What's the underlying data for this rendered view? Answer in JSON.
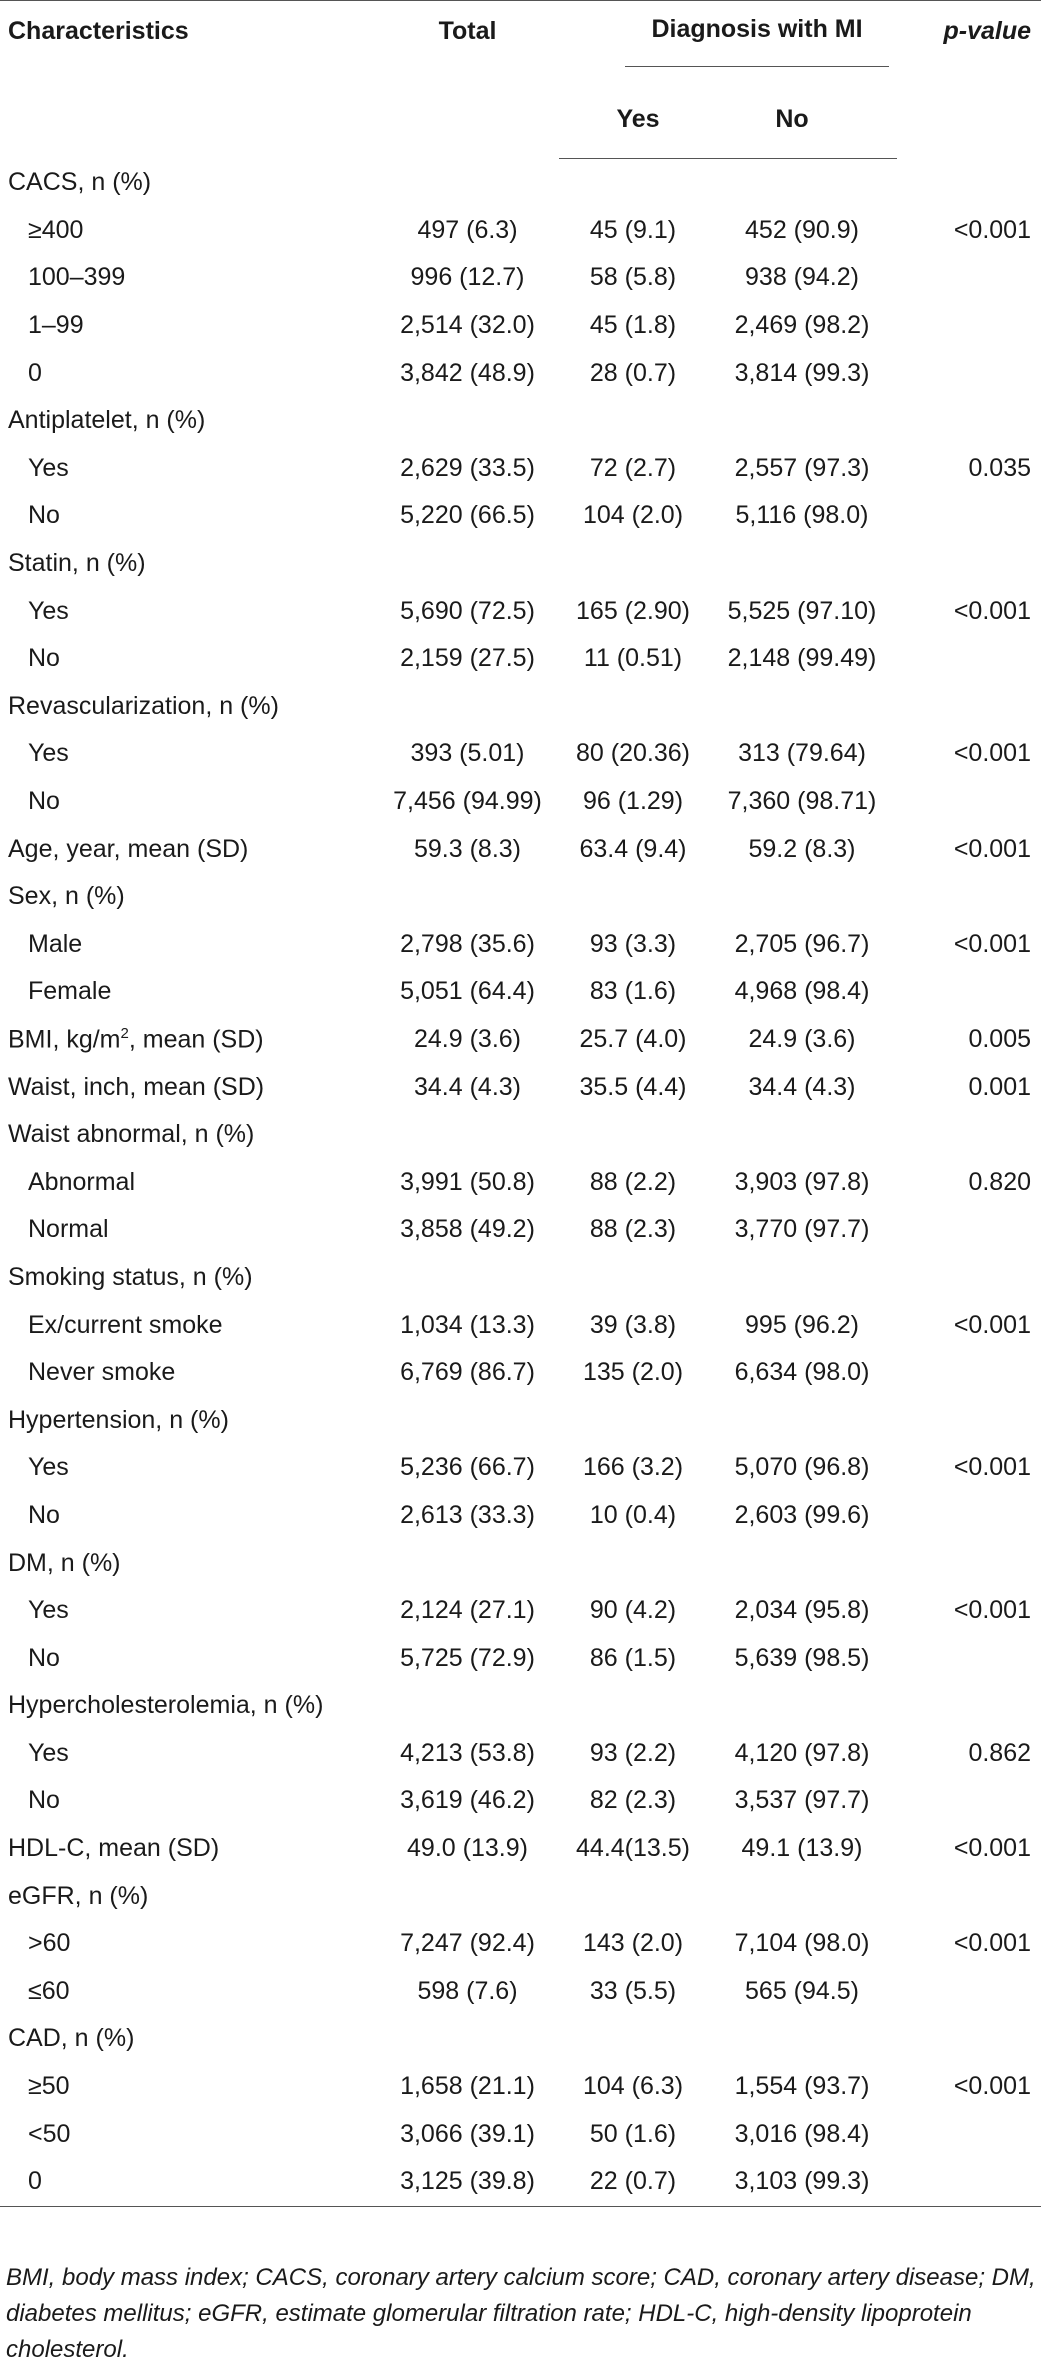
{
  "headers": {
    "characteristics": "Characteristics",
    "total": "Total",
    "diagnosis": "Diagnosis with MI",
    "yes": "Yes",
    "no": "No",
    "pvalue": "p-value"
  },
  "rows": [
    {
      "label": "CACS, n (%)",
      "group": true
    },
    {
      "label": "≥400",
      "total": "497 (6.3)",
      "yes": "45 (9.1)",
      "no": "452 (90.9)",
      "p": "<0.001"
    },
    {
      "label": "100–399",
      "total": "996 (12.7)",
      "yes": "58 (5.8)",
      "no": "938 (94.2)",
      "p": ""
    },
    {
      "label": "1–99",
      "total": "2,514 (32.0)",
      "yes": "45 (1.8)",
      "no": "2,469 (98.2)",
      "p": ""
    },
    {
      "label": "0",
      "total": "3,842 (48.9)",
      "yes": "28 (0.7)",
      "no": "3,814 (99.3)",
      "p": ""
    },
    {
      "label": "Antiplatelet, n (%)",
      "group": true
    },
    {
      "label": "Yes",
      "total": "2,629 (33.5)",
      "yes": "72 (2.7)",
      "no": "2,557 (97.3)",
      "p": "0.035"
    },
    {
      "label": "No",
      "total": "5,220 (66.5)",
      "yes": "104 (2.0)",
      "no": "5,116 (98.0)",
      "p": ""
    },
    {
      "label": "Statin, n (%)",
      "group": true
    },
    {
      "label": "Yes",
      "total": "5,690 (72.5)",
      "yes": "165 (2.90)",
      "no": "5,525 (97.10)",
      "p": "<0.001"
    },
    {
      "label": "No",
      "total": "2,159 (27.5)",
      "yes": "11 (0.51)",
      "no": "2,148 (99.49)",
      "p": ""
    },
    {
      "label": "Revascularization, n (%)",
      "group": true
    },
    {
      "label": "Yes",
      "total": "393 (5.01)",
      "yes": "80 (20.36)",
      "no": "313 (79.64)",
      "p": "<0.001"
    },
    {
      "label": "No",
      "total": "7,456 (94.99)",
      "yes": "96 (1.29)",
      "no": "7,360 (98.71)",
      "p": ""
    },
    {
      "label": "Age, year, mean (SD)",
      "top": true,
      "total": "59.3 (8.3)",
      "yes": "63.4 (9.4)",
      "no": "59.2 (8.3)",
      "p": "<0.001"
    },
    {
      "label": "Sex, n (%)",
      "group": true
    },
    {
      "label": "Male",
      "total": "2,798 (35.6)",
      "yes": "93 (3.3)",
      "no": "2,705 (96.7)",
      "p": "<0.001"
    },
    {
      "label": "Female",
      "total": "5,051 (64.4)",
      "yes": "83 (1.6)",
      "no": "4,968 (98.4)",
      "p": ""
    },
    {
      "label": "BMI, kg/m",
      "sup": "2",
      "label_suffix": ", mean (SD)",
      "top": true,
      "total": "24.9 (3.6)",
      "yes": "25.7 (4.0)",
      "no": "24.9 (3.6)",
      "p": "0.005"
    },
    {
      "label": "Waist, inch, mean (SD)",
      "top": true,
      "total": "34.4 (4.3)",
      "yes": "35.5 (4.4)",
      "no": "34.4 (4.3)",
      "p": "0.001"
    },
    {
      "label": "Waist abnormal, n (%)",
      "group": true
    },
    {
      "label": "Abnormal",
      "total": "3,991 (50.8)",
      "yes": "88 (2.2)",
      "no": "3,903 (97.8)",
      "p": "0.820"
    },
    {
      "label": "Normal",
      "total": "3,858 (49.2)",
      "yes": "88 (2.3)",
      "no": "3,770 (97.7)",
      "p": ""
    },
    {
      "label": "Smoking status, n (%)",
      "group": true
    },
    {
      "label": "Ex/current smoke",
      "total": "1,034 (13.3)",
      "yes": "39 (3.8)",
      "no": "995 (96.2)",
      "p": "<0.001"
    },
    {
      "label": "Never smoke",
      "total": "6,769 (86.7)",
      "yes": "135 (2.0)",
      "no": "6,634 (98.0)",
      "p": ""
    },
    {
      "label": "Hypertension, n (%)",
      "group": true
    },
    {
      "label": "Yes",
      "total": "5,236 (66.7)",
      "yes": "166 (3.2)",
      "no": "5,070 (96.8)",
      "p": "<0.001"
    },
    {
      "label": "No",
      "total": "2,613 (33.3)",
      "yes": "10 (0.4)",
      "no": "2,603 (99.6)",
      "p": ""
    },
    {
      "label": "DM, n (%)",
      "group": true
    },
    {
      "label": "Yes",
      "total": "2,124 (27.1)",
      "yes": "90 (4.2)",
      "no": "2,034 (95.8)",
      "p": "<0.001"
    },
    {
      "label": "No",
      "total": "5,725 (72.9)",
      "yes": "86 (1.5)",
      "no": "5,639 (98.5)",
      "p": ""
    },
    {
      "label": "Hypercholesterolemia, n (%)",
      "group": true
    },
    {
      "label": "Yes",
      "total": "4,213 (53.8)",
      "yes": "93 (2.2)",
      "no": "4,120 (97.8)",
      "p": "0.862"
    },
    {
      "label": "No",
      "total": "3,619 (46.2)",
      "yes": "82 (2.3)",
      "no": "3,537 (97.7)",
      "p": ""
    },
    {
      "label": "HDL-C, mean (SD)",
      "top": true,
      "total": "49.0 (13.9)",
      "yes": "44.4(13.5)",
      "no": "49.1 (13.9)",
      "p": "<0.001"
    },
    {
      "label": "eGFR, n (%)",
      "group": true
    },
    {
      "label": ">60",
      "total": "7,247 (92.4)",
      "yes": "143 (2.0)",
      "no": "7,104 (98.0)",
      "p": "<0.001"
    },
    {
      "label": "≤60",
      "total": "598 (7.6)",
      "yes": "33 (5.5)",
      "no": "565 (94.5)",
      "p": ""
    },
    {
      "label": "CAD, n (%)",
      "group": true
    },
    {
      "label": "≥50",
      "total": "1,658 (21.1)",
      "yes": "104 (6.3)",
      "no": "1,554 (93.7)",
      "p": "<0.001"
    },
    {
      "label": "<50",
      "total": "3,066 (39.1)",
      "yes": "50 (1.6)",
      "no": "3,016 (98.4)",
      "p": ""
    },
    {
      "label": "0",
      "total": "3,125 (39.8)",
      "yes": "22 (0.7)",
      "no": "3,103 (99.3)",
      "p": ""
    }
  ],
  "footnote": "BMI, body mass index; CACS, coronary artery calcium score; CAD, coronary artery disease; DM, diabetes mellitus; eGFR, estimate glomerular filtration rate; HDL-C, high-density lipoprotein cholesterol."
}
